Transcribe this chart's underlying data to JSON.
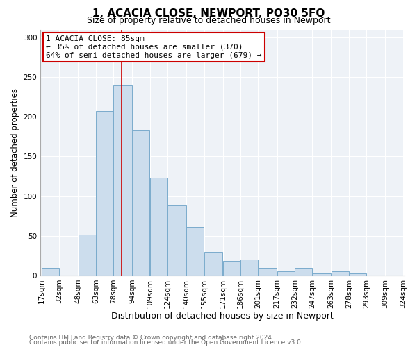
{
  "title": "1, ACACIA CLOSE, NEWPORT, PO30 5FQ",
  "subtitle": "Size of property relative to detached houses in Newport",
  "xlabel": "Distribution of detached houses by size in Newport",
  "ylabel": "Number of detached properties",
  "bin_edges": [
    17,
    32,
    48,
    63,
    78,
    94,
    109,
    124,
    140,
    155,
    171,
    186,
    201,
    217,
    232,
    247,
    263,
    278,
    293,
    309,
    324
  ],
  "bar_values": [
    10,
    0,
    52,
    207,
    240,
    183,
    123,
    88,
    61,
    30,
    18,
    20,
    10,
    5,
    10,
    3,
    5,
    3,
    0,
    0
  ],
  "bar_labels": [
    "17sqm",
    "32sqm",
    "48sqm",
    "63sqm",
    "78sqm",
    "94sqm",
    "109sqm",
    "124sqm",
    "140sqm",
    "155sqm",
    "171sqm",
    "186sqm",
    "201sqm",
    "217sqm",
    "232sqm",
    "247sqm",
    "263sqm",
    "278sqm",
    "293sqm",
    "309sqm",
    "324sqm"
  ],
  "bar_color": "#ccdded",
  "bar_edgecolor": "#7aabcc",
  "marker_value": 85,
  "marker_color": "#cc0000",
  "annotation_line1": "1 ACACIA CLOSE: 85sqm",
  "annotation_line2": "← 35% of detached houses are smaller (370)",
  "annotation_line3": "64% of semi-detached houses are larger (679) →",
  "annotation_box_edgecolor": "#cc0000",
  "ylim": [
    0,
    310
  ],
  "yticks": [
    0,
    50,
    100,
    150,
    200,
    250,
    300
  ],
  "plot_bg_color": "#eef2f7",
  "fig_bg_color": "#ffffff",
  "footer1": "Contains HM Land Registry data © Crown copyright and database right 2024.",
  "footer2": "Contains public sector information licensed under the Open Government Licence v3.0.",
  "title_fontsize": 11,
  "subtitle_fontsize": 9,
  "ylabel_fontsize": 8.5,
  "xlabel_fontsize": 9,
  "annotation_fontsize": 8,
  "footer_fontsize": 6.5,
  "tick_fontsize": 7.5
}
